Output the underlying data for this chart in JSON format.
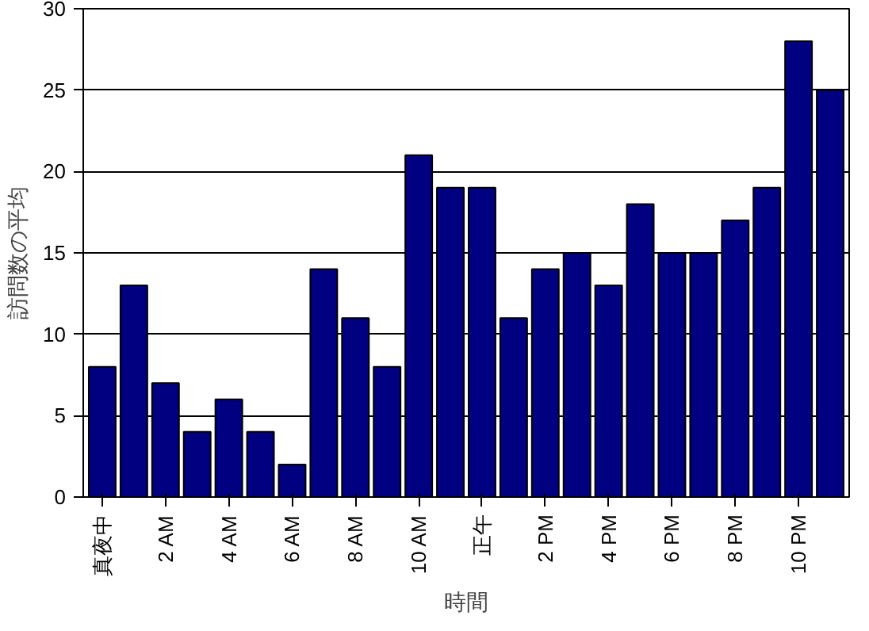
{
  "chart_data": {
    "type": "bar",
    "xlabel": "時間",
    "ylabel": "訪問数の平均",
    "categories": [
      "真夜中",
      null,
      "2 AM",
      null,
      "4 AM",
      null,
      "6 AM",
      null,
      "8 AM",
      null,
      "10 AM",
      null,
      "正午",
      null,
      "2 PM",
      null,
      "4 PM",
      null,
      "6 PM",
      null,
      "8 PM",
      null,
      "10 PM",
      null
    ],
    "values": [
      8,
      13,
      7,
      4,
      6,
      4,
      2,
      14,
      11,
      8,
      21,
      19,
      19,
      11,
      14,
      15,
      13,
      18,
      15,
      15,
      17,
      19,
      28,
      25
    ],
    "color": "#000080",
    "ylim": [
      0,
      30
    ],
    "yticks": [
      0,
      5,
      10,
      15,
      20,
      25,
      30
    ],
    "grid": "y"
  }
}
